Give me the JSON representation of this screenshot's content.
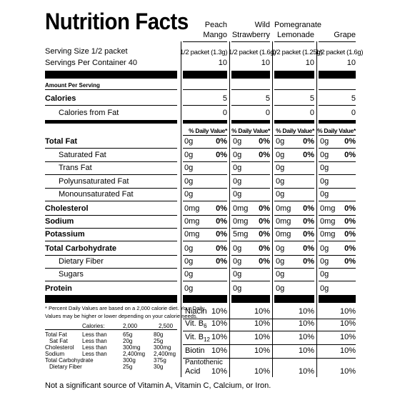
{
  "title": "Nutrition Facts",
  "flavors": [
    {
      "line1": "Peach",
      "line2": "Mango",
      "serving": "1/2 packet (1.3g)",
      "servings_per": "10",
      "calories": "5",
      "calories_fat": "0",
      "nutrients": [
        [
          "0g",
          "0%"
        ],
        [
          "0g",
          "0%"
        ],
        [
          "0g",
          ""
        ],
        [
          "0g",
          ""
        ],
        [
          "0g",
          ""
        ],
        [
          "0mg",
          "0%"
        ],
        [
          "0mg",
          "0%"
        ],
        [
          "0mg",
          "0%"
        ],
        [
          "0g",
          "0%"
        ],
        [
          "0g",
          "0%"
        ],
        [
          "0g",
          ""
        ],
        [
          "0g",
          ""
        ]
      ]
    },
    {
      "line1": "Wild",
      "line2": "Strawberry",
      "serving": "1/2 packet (1.6g)",
      "servings_per": "10",
      "calories": "5",
      "calories_fat": "0",
      "nutrients": [
        [
          "0g",
          "0%"
        ],
        [
          "0g",
          "0%"
        ],
        [
          "0g",
          ""
        ],
        [
          "0g",
          ""
        ],
        [
          "0g",
          ""
        ],
        [
          "0mg",
          "0%"
        ],
        [
          "0mg",
          "0%"
        ],
        [
          "5mg",
          "0%"
        ],
        [
          "0g",
          "0%"
        ],
        [
          "0g",
          "0%"
        ],
        [
          "0g",
          ""
        ],
        [
          "0g",
          ""
        ]
      ]
    },
    {
      "line1": "Pomegranate",
      "line2": "Lemonade",
      "serving": "1/2 packet (1.25g)",
      "servings_per": "10",
      "calories": "5",
      "calories_fat": "0",
      "nutrients": [
        [
          "0g",
          "0%"
        ],
        [
          "0g",
          "0%"
        ],
        [
          "0g",
          ""
        ],
        [
          "0g",
          ""
        ],
        [
          "0g",
          ""
        ],
        [
          "0mg",
          "0%"
        ],
        [
          "0mg",
          "0%"
        ],
        [
          "0mg",
          "0%"
        ],
        [
          "0g",
          "0%"
        ],
        [
          "0g",
          "0%"
        ],
        [
          "0g",
          ""
        ],
        [
          "0g",
          ""
        ]
      ]
    },
    {
      "line1": "",
      "line2": "Grape",
      "serving": "1/2 packet (1.6g)",
      "servings_per": "10",
      "calories": "5",
      "calories_fat": "0",
      "nutrients": [
        [
          "0g",
          "0%"
        ],
        [
          "0g",
          "0%"
        ],
        [
          "0g",
          ""
        ],
        [
          "0g",
          ""
        ],
        [
          "0g",
          ""
        ],
        [
          "0mg",
          "0%"
        ],
        [
          "0mg",
          "0%"
        ],
        [
          "0mg",
          "0%"
        ],
        [
          "0g",
          "0%"
        ],
        [
          "0g",
          "0%"
        ],
        [
          "0g",
          ""
        ],
        [
          "0g",
          ""
        ]
      ]
    }
  ],
  "serving_size_label": "Serving Size 1/2 packet",
  "servings_per_label": "Servings Per Container 40",
  "amount_per_serving": "Amount Per Serving",
  "calories_label": "Calories",
  "calories_fat_label": "Calories from Fat",
  "dv_header": "% Daily Value*",
  "nutrient_labels": [
    "Total Fat",
    "Saturated Fat",
    "Trans Fat",
    "Polyunsaturated Fat",
    "Monounsaturated Fat",
    "Cholesterol",
    "Sodium",
    "Potassium",
    "Total Carbohydrate",
    "Dietary Fiber",
    "Sugars",
    "Protein"
  ],
  "footnote": [
    "* Percent Daily Values are based on a 2,000 calorie diet. Your Daily",
    "Values may be higher or lower depending on your calorie needs."
  ],
  "dv_table": {
    "header": [
      "Calories:",
      "2,000",
      "2,500"
    ],
    "rows": [
      [
        "Total Fat",
        "Less than",
        "65g",
        "80g"
      ],
      [
        "  Sat Fat",
        "Less than",
        "20g",
        "25g"
      ],
      [
        "Cholesterol",
        "Less than",
        "300mg",
        "300mg"
      ],
      [
        "Sodium",
        "Less than",
        "2,400mg",
        "2,400mg"
      ],
      [
        "Total Carbohydrate",
        "",
        "300g",
        "375g"
      ],
      [
        "  Dietary Fiber",
        "",
        "25g",
        "30g"
      ]
    ]
  },
  "vitamins": [
    {
      "name": "Niacin",
      "sub": "",
      "v": [
        "10%",
        "10%",
        "10%",
        "10%"
      ]
    },
    {
      "name": "Vit. B",
      "sub": "6",
      "v": [
        "10%",
        "10%",
        "10%",
        "10%"
      ]
    },
    {
      "name": "Vit. B",
      "sub": "12",
      "v": [
        "10%",
        "10%",
        "10%",
        "10%"
      ]
    },
    {
      "name": "Biotin",
      "sub": "",
      "v": [
        "10%",
        "10%",
        "10%",
        "10%"
      ]
    },
    {
      "name": "Pantothenic Acid",
      "sub": "",
      "v": [
        "10%",
        "10%",
        "10%",
        "10%"
      ]
    }
  ],
  "bottom_note": "Not a significant source of Vitamin A, Vitamin C, Calcium, or Iron."
}
